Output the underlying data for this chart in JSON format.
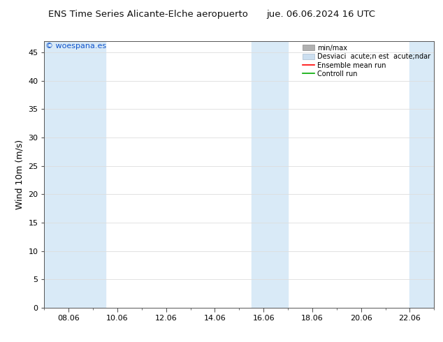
{
  "title_left": "ENS Time Series Alicante-Elche aeropuerto",
  "title_right": "jue. 06.06.2024 16 UTC",
  "ylabel": "Wind 10m (m/s)",
  "watermark": "© woespana.es",
  "ylim": [
    0,
    47
  ],
  "yticks": [
    0,
    5,
    10,
    15,
    20,
    25,
    30,
    35,
    40,
    45
  ],
  "xtick_labels": [
    "08.06",
    "10.06",
    "12.06",
    "14.06",
    "16.06",
    "18.06",
    "20.06",
    "22.06"
  ],
  "xtick_positions": [
    8,
    10,
    12,
    14,
    16,
    18,
    20,
    22
  ],
  "bg_color": "#ffffff",
  "plot_bg_color": "#ffffff",
  "shaded_bands": [
    {
      "x_start": 7.0,
      "x_end": 9.5,
      "color": "#d9eaf7"
    },
    {
      "x_start": 15.5,
      "x_end": 17.0,
      "color": "#d9eaf7"
    },
    {
      "x_start": 22.0,
      "x_end": 23.0,
      "color": "#d9eaf7"
    }
  ],
  "x_min": 7.0,
  "x_max": 23.0,
  "title_fontsize": 9.5,
  "tick_fontsize": 8,
  "ylabel_fontsize": 9,
  "watermark_color": "#1155cc",
  "watermark_fontsize": 8,
  "grid_color": "#dddddd",
  "axis_color": "#555555",
  "legend_label_minmax": "min/max",
  "legend_label_std": "Desviaci  acute;n est  acute;ndar",
  "legend_label_mean": "Ensemble mean run",
  "legend_label_ctrl": "Controll run",
  "legend_fontsize": 7,
  "minmax_color": "#b0b0b0",
  "std_color": "#ccdff0",
  "mean_color": "#ff0000",
  "ctrl_color": "#00aa00"
}
